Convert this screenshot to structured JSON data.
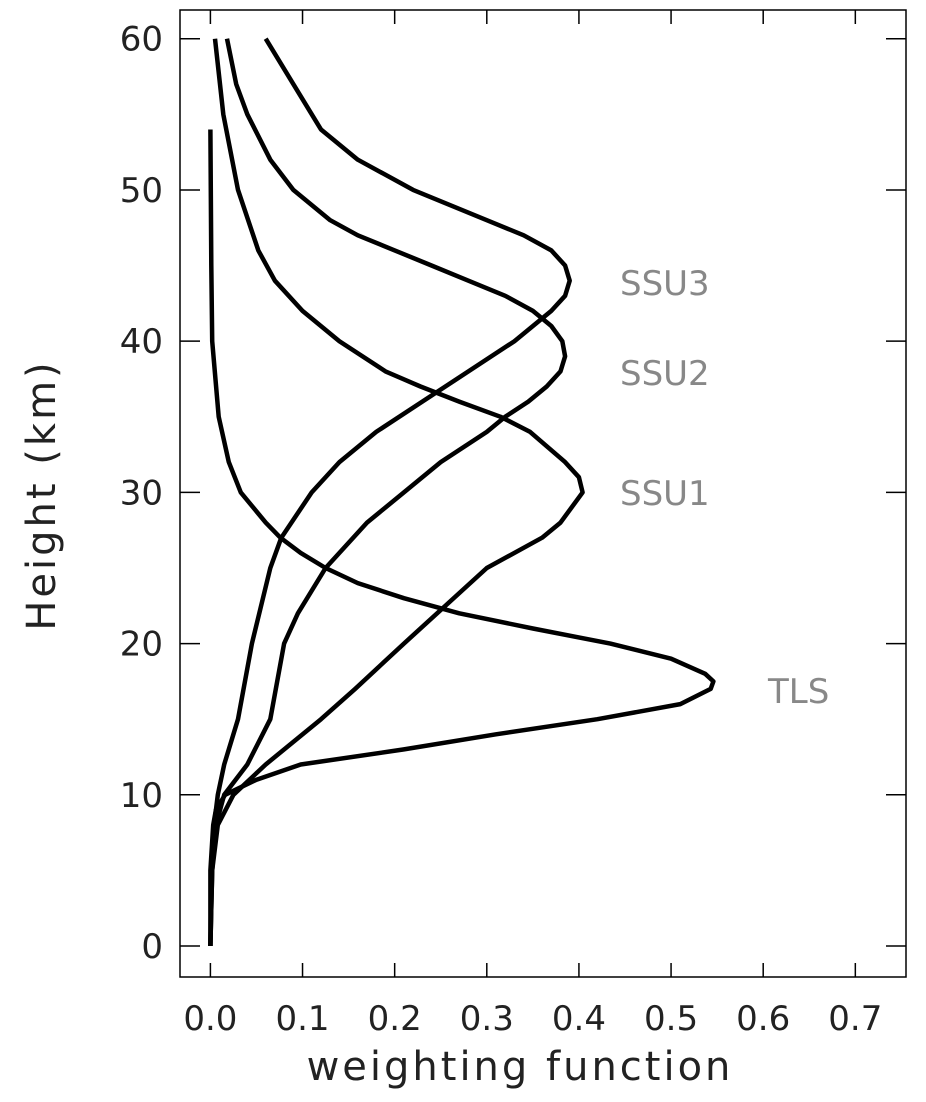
{
  "chart_data": {
    "type": "line",
    "x_label": "weighting function",
    "y_label": "Height (km)",
    "xlim": [
      -0.033,
      0.755
    ],
    "ylim": [
      -2.05,
      61.9
    ],
    "xticks": [
      {
        "value": 0,
        "label": "0.0"
      },
      0.1,
      0.2,
      0.3,
      0.4,
      0.5,
      0.6,
      0.7
    ],
    "yticks": [
      0,
      10,
      20,
      30,
      40,
      50,
      60
    ],
    "series": [
      {
        "name": "SSU3",
        "color": "#000000",
        "x": [
          0,
          0.001,
          0.004,
          0.008,
          0.015,
          0.03,
          0.045,
          0.065,
          0.077,
          0.11,
          0.14,
          0.18,
          0.23,
          0.28,
          0.33,
          0.37,
          0.385,
          0.39,
          0.385,
          0.37,
          0.34,
          0.3,
          0.22,
          0.16,
          0.12,
          0.09,
          0.06
        ],
        "y": [
          0,
          5,
          8,
          10,
          12,
          15,
          20,
          25,
          27,
          30,
          32,
          34,
          36,
          38,
          40,
          42,
          43,
          44,
          45,
          46,
          47,
          48,
          50,
          52,
          54,
          57,
          60
        ]
      },
      {
        "name": "SSU2",
        "color": "#000000",
        "x": [
          0,
          0.002,
          0.006,
          0.015,
          0.04,
          0.065,
          0.08,
          0.095,
          0.125,
          0.17,
          0.21,
          0.25,
          0.3,
          0.32,
          0.345,
          0.365,
          0.38,
          0.385,
          0.382,
          0.37,
          0.35,
          0.32,
          0.28,
          0.24,
          0.2,
          0.16,
          0.13,
          0.09,
          0.065,
          0.04,
          0.028,
          0.018
        ],
        "y": [
          0,
          5,
          8,
          10,
          12,
          15,
          20,
          22,
          25,
          28,
          30,
          32,
          34,
          35,
          36,
          37,
          38,
          39,
          40,
          41,
          42,
          43,
          44,
          45,
          46,
          47,
          48,
          50,
          52,
          55,
          57,
          60
        ]
      },
      {
        "name": "SSU1",
        "color": "#000000",
        "x": [
          0,
          0.002,
          0.008,
          0.025,
          0.06,
          0.12,
          0.157,
          0.21,
          0.3,
          0.36,
          0.38,
          0.404,
          0.4,
          0.385,
          0.347,
          0.315,
          0.27,
          0.228,
          0.19,
          0.14,
          0.1,
          0.07,
          0.052,
          0.03,
          0.014,
          0.005
        ],
        "y": [
          0,
          5,
          8,
          10,
          12,
          15,
          17,
          20,
          25,
          27,
          28,
          30,
          31,
          32,
          34,
          35,
          36,
          37,
          38,
          40,
          42,
          44,
          46,
          50,
          55,
          60
        ]
      },
      {
        "name": "TLS",
        "color": "#000000",
        "x": [
          0,
          0,
          0.003,
          0.006,
          0.016,
          0.05,
          0.098,
          0.21,
          0.31,
          0.42,
          0.51,
          0.543,
          0.546,
          0.537,
          0.5,
          0.434,
          0.35,
          0.27,
          0.21,
          0.16,
          0.125,
          0.098,
          0.076,
          0.06,
          0.033,
          0.02,
          0.009,
          0.002,
          0.001,
          0
        ],
        "y": [
          0,
          5,
          8,
          9,
          10,
          11,
          12,
          13,
          14,
          15,
          16,
          17,
          17.5,
          18,
          19,
          20,
          21,
          22,
          23,
          24,
          25,
          26,
          27,
          28,
          30,
          32,
          35,
          40,
          45,
          54
        ]
      }
    ]
  }
}
